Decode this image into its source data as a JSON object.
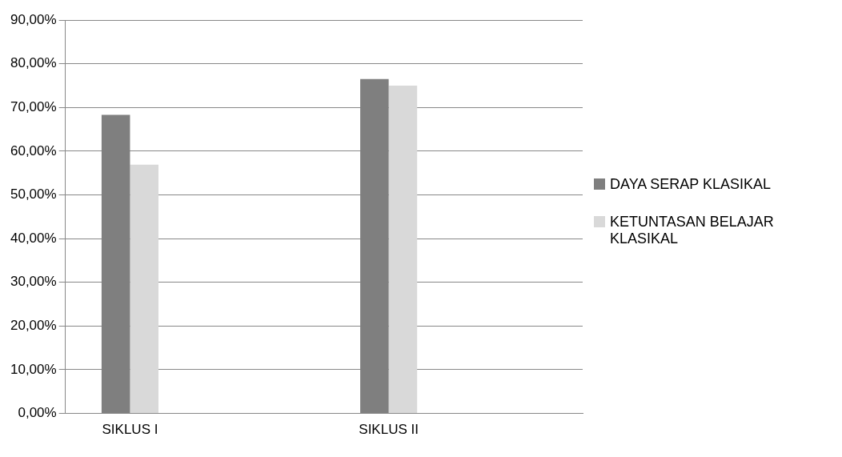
{
  "chart_data": {
    "type": "bar",
    "categories": [
      "SIKLUS I",
      null,
      "SIKLUS II",
      null
    ],
    "series": [
      {
        "name": "DAYA SERAP KLASIKAL",
        "color": "#7f7f7f",
        "values": [
          68.3,
          null,
          76.5,
          null
        ]
      },
      {
        "name": "KETUNTASAN BELAJAR KLASIKAL",
        "color": "#d9d9d9",
        "values": [
          56.9,
          null,
          75.0,
          null
        ]
      }
    ],
    "ylim": [
      0,
      90
    ],
    "yticks": [
      {
        "value": 0,
        "label": "0,00%"
      },
      {
        "value": 10,
        "label": "10,00%"
      },
      {
        "value": 20,
        "label": "20,00%"
      },
      {
        "value": 30,
        "label": "30,00%"
      },
      {
        "value": 40,
        "label": "40,00%"
      },
      {
        "value": 50,
        "label": "50,00%"
      },
      {
        "value": 60,
        "label": "60,00%"
      },
      {
        "value": 70,
        "label": "70,00%"
      },
      {
        "value": 80,
        "label": "80,00%"
      },
      {
        "value": 90,
        "label": "90,00%"
      }
    ],
    "grid": "y",
    "legend": "right"
  }
}
